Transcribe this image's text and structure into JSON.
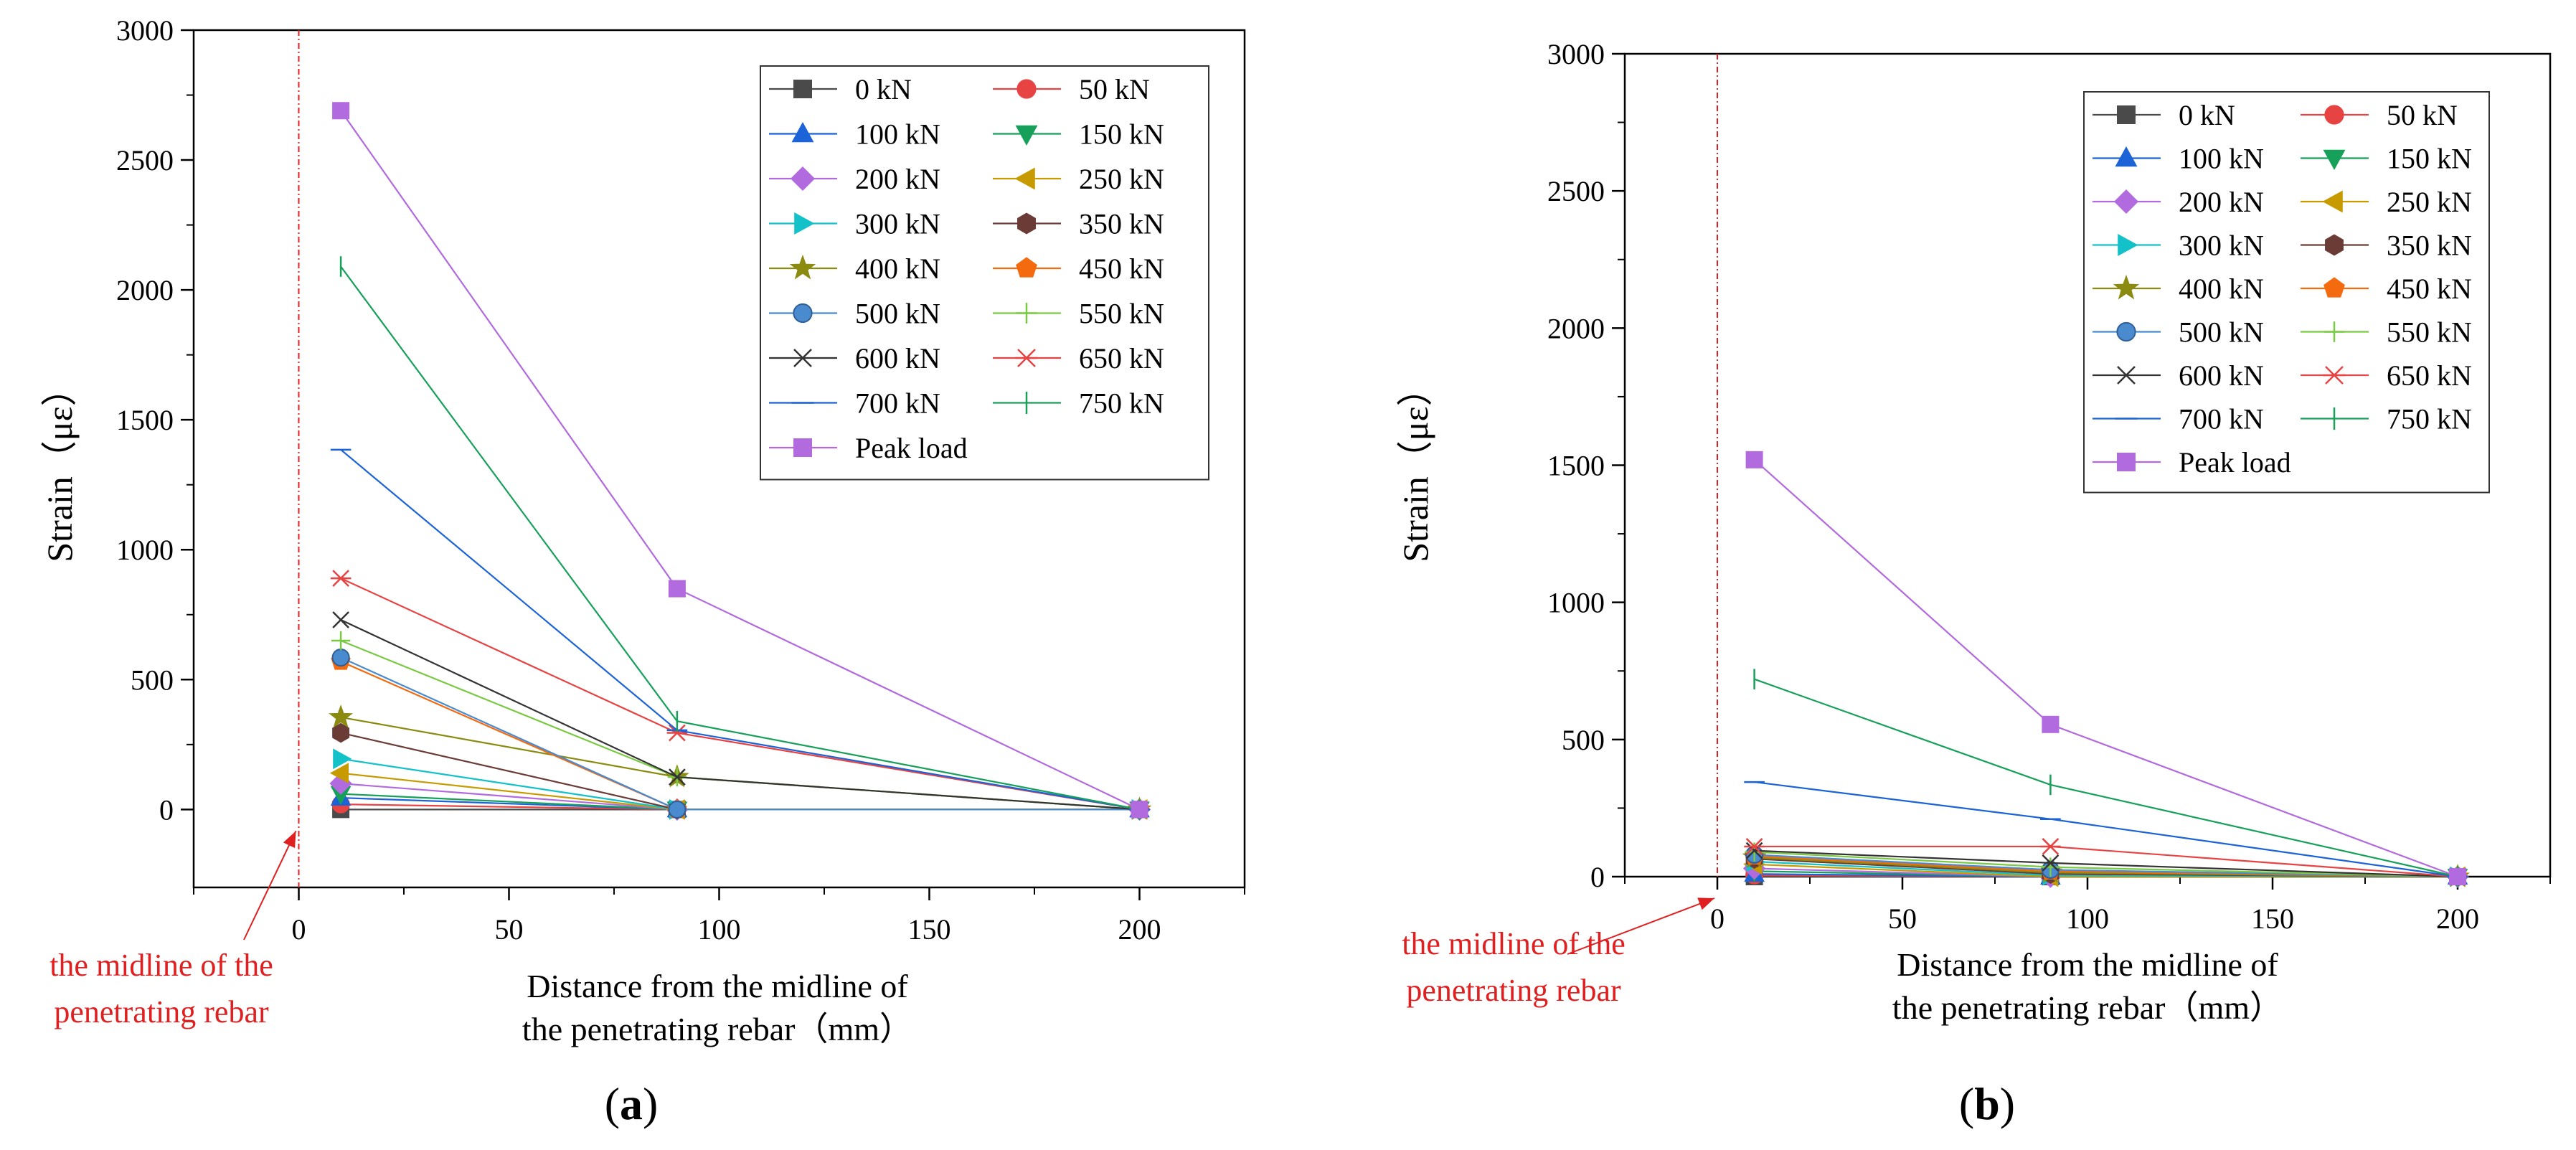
{
  "chart_data": [
    {
      "panel": "a",
      "panel_label_open": "(",
      "panel_label_letter": "a",
      "panel_label_close": ")",
      "type": "line",
      "xlabel_line1": "Distance from the midline of",
      "xlabel_line2": "the penetrating  rebar（mm）",
      "ylabel": "Strain（με）",
      "xlim": [
        -25,
        225
      ],
      "ylim": [
        -300,
        3000
      ],
      "xticks": [
        0,
        50,
        100,
        150,
        200
      ],
      "yticks": [
        0,
        500,
        1000,
        1500,
        2000,
        2500,
        3000
      ],
      "x": [
        10,
        90,
        200
      ],
      "midline_x": 0,
      "annotation_line1": "the midline of the",
      "annotation_line2": "penetrating  rebar",
      "series": [
        {
          "name": "0 kN",
          "color": "#4a4a4a",
          "marker": "square",
          "values": [
            0,
            0,
            0
          ]
        },
        {
          "name": "50 kN",
          "color": "#e84343",
          "marker": "circle",
          "values": [
            20,
            0,
            0
          ]
        },
        {
          "name": "100 kN",
          "color": "#1b63d6",
          "marker": "triangle-up",
          "values": [
            45,
            0,
            0
          ]
        },
        {
          "name": "150 kN",
          "color": "#17a05a",
          "marker": "triangle-down",
          "values": [
            60,
            0,
            0
          ]
        },
        {
          "name": "200 kN",
          "color": "#b26adf",
          "marker": "diamond",
          "values": [
            100,
            0,
            0
          ]
        },
        {
          "name": "250 kN",
          "color": "#c79a00",
          "marker": "triangle-left",
          "values": [
            140,
            0,
            0
          ]
        },
        {
          "name": "300 kN",
          "color": "#13c1c9",
          "marker": "triangle-right",
          "values": [
            195,
            0,
            0
          ]
        },
        {
          "name": "350 kN",
          "color": "#6b3b36",
          "marker": "hexagon",
          "values": [
            295,
            0,
            0
          ]
        },
        {
          "name": "400 kN",
          "color": "#8b8b12",
          "marker": "star",
          "values": [
            355,
            125,
            0
          ]
        },
        {
          "name": "450 kN",
          "color": "#f46a0f",
          "marker": "pentagon",
          "values": [
            570,
            0,
            0
          ]
        },
        {
          "name": "500 kN",
          "color": "#4a8bd0",
          "marker": "sphere",
          "values": [
            585,
            0,
            0
          ]
        },
        {
          "name": "550 kN",
          "color": "#7ac943",
          "marker": "plus",
          "values": [
            650,
            125,
            0
          ]
        },
        {
          "name": "600 kN",
          "color": "#333333",
          "marker": "cross",
          "values": [
            730,
            125,
            0
          ]
        },
        {
          "name": "650 kN",
          "color": "#e84343",
          "marker": "asterisk",
          "values": [
            890,
            295,
            0
          ]
        },
        {
          "name": "700 kN",
          "color": "#1b63d6",
          "marker": "hbar",
          "values": [
            1385,
            305,
            0
          ]
        },
        {
          "name": "750 kN",
          "color": "#17a05a",
          "marker": "vbar",
          "values": [
            2090,
            340,
            0
          ]
        },
        {
          "name": "Peak load",
          "color": "#b26adf",
          "marker": "square",
          "values": [
            2690,
            850,
            0
          ]
        }
      ]
    },
    {
      "panel": "b",
      "panel_label_open": "(",
      "panel_label_letter": "b",
      "panel_label_close": ")",
      "type": "line",
      "xlabel_line1": "Distance from the midline of",
      "xlabel_line2": "the penetrating  rebar（mm）",
      "ylabel": "Strain（με）",
      "xlim": [
        -25,
        225
      ],
      "ylim": [
        0,
        3000
      ],
      "xticks": [
        0,
        50,
        100,
        150,
        200
      ],
      "yticks": [
        0,
        500,
        1000,
        1500,
        2000,
        2500,
        3000
      ],
      "x": [
        10,
        90,
        200
      ],
      "midline_x": 0,
      "annotation_line1": "the midline of the",
      "annotation_line2": "penetrating  rebar",
      "series": [
        {
          "name": "0 kN",
          "color": "#4a4a4a",
          "marker": "square",
          "values": [
            0,
            0,
            0
          ]
        },
        {
          "name": "50 kN",
          "color": "#e84343",
          "marker": "circle",
          "values": [
            5,
            0,
            0
          ]
        },
        {
          "name": "100 kN",
          "color": "#1b63d6",
          "marker": "triangle-up",
          "values": [
            10,
            0,
            0
          ]
        },
        {
          "name": "150 kN",
          "color": "#17a05a",
          "marker": "triangle-down",
          "values": [
            20,
            0,
            0
          ]
        },
        {
          "name": "200 kN",
          "color": "#b26adf",
          "marker": "diamond",
          "values": [
            30,
            0,
            0
          ]
        },
        {
          "name": "250 kN",
          "color": "#c79a00",
          "marker": "triangle-left",
          "values": [
            45,
            0,
            0
          ]
        },
        {
          "name": "300 kN",
          "color": "#13c1c9",
          "marker": "triangle-right",
          "values": [
            55,
            5,
            0
          ]
        },
        {
          "name": "350 kN",
          "color": "#6b3b36",
          "marker": "hexagon",
          "values": [
            65,
            10,
            0
          ]
        },
        {
          "name": "400 kN",
          "color": "#8b8b12",
          "marker": "star",
          "values": [
            70,
            15,
            0
          ]
        },
        {
          "name": "450 kN",
          "color": "#f46a0f",
          "marker": "pentagon",
          "values": [
            75,
            20,
            0
          ]
        },
        {
          "name": "500 kN",
          "color": "#4a8bd0",
          "marker": "sphere",
          "values": [
            80,
            25,
            0
          ]
        },
        {
          "name": "550 kN",
          "color": "#7ac943",
          "marker": "plus",
          "values": [
            90,
            35,
            0
          ]
        },
        {
          "name": "600 kN",
          "color": "#333333",
          "marker": "cross",
          "values": [
            95,
            50,
            0
          ]
        },
        {
          "name": "650 kN",
          "color": "#e84343",
          "marker": "asterisk",
          "values": [
            110,
            110,
            0
          ]
        },
        {
          "name": "700 kN",
          "color": "#1b63d6",
          "marker": "hbar",
          "values": [
            345,
            210,
            0
          ]
        },
        {
          "name": "750 kN",
          "color": "#17a05a",
          "marker": "vbar",
          "values": [
            720,
            335,
            0
          ]
        },
        {
          "name": "Peak load",
          "color": "#b26adf",
          "marker": "square",
          "values": [
            1520,
            555,
            0
          ]
        }
      ]
    }
  ]
}
